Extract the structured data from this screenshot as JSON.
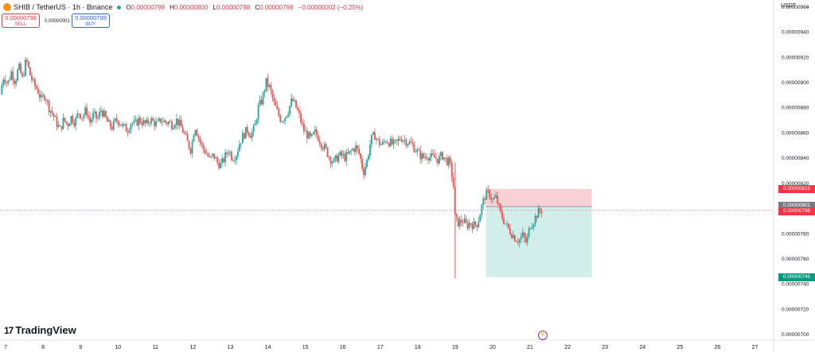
{
  "header": {
    "title": "SHIB / TetherUS · 1h · Binance",
    "open_label": "O",
    "open": "0.00000799",
    "high_label": "H",
    "high": "0.00000800",
    "low_label": "L",
    "low": "0.00000798",
    "close_label": "C",
    "close": "0.00000798",
    "change": "−0.00000002 (−0.25%)"
  },
  "trade": {
    "sell_price": "0.00000798",
    "sell_label": "SELL",
    "buy_price": "0.00000799",
    "buy_label": "BUY",
    "spread": "0.00000001"
  },
  "currency": "USDT",
  "currency_caret": "⌄",
  "brand": "TradingView",
  "brand_mark": "17",
  "flash_icon": "⚡",
  "price_tags": {
    "target": "0.00000815",
    "mid": "0.00000801",
    "last": "0.00000798",
    "stop": "0.00000745"
  },
  "colors": {
    "up": "#26a69a",
    "down": "#ef5350",
    "target_zone": "#f7c9cc",
    "stop_zone": "#c9ebe6",
    "target_tag": "#f23645",
    "stop_tag": "#089981",
    "mid_tag": "#787b86"
  },
  "chart_data": {
    "type": "candlestick",
    "x_ticks": [
      "7",
      "8",
      "9",
      "10",
      "11",
      "12",
      "13",
      "14",
      "15",
      "16",
      "17",
      "18",
      "19",
      "20",
      "21",
      "22",
      "23",
      "24",
      "25",
      "26",
      "27"
    ],
    "y_ticks": [
      "0.00000960",
      "0.00000940",
      "0.00000920",
      "0.00000900",
      "0.00000880",
      "0.00000860",
      "0.00000840",
      "0.00000820",
      "0.00000780",
      "0.00000760",
      "0.00000740",
      "0.00000720",
      "0.00000700"
    ],
    "ylim": [
      6.95e-06,
      9.65e-06
    ],
    "xlim": [
      6.85,
      27.5
    ],
    "close_path": [
      [
        6.85,
        8.9e-06
      ],
      [
        6.95,
        9.05e-06
      ],
      [
        7.05,
        8.98e-06
      ],
      [
        7.15,
        9.08e-06
      ],
      [
        7.25,
        9e-06
      ],
      [
        7.35,
        9.12e-06
      ],
      [
        7.45,
        9.02e-06
      ],
      [
        7.55,
        9.18e-06
      ],
      [
        7.65,
        9.06e-06
      ],
      [
        7.75,
        8.98e-06
      ],
      [
        7.85,
        8.94e-06
      ],
      [
        7.95,
        8.86e-06
      ],
      [
        8.05,
        8.9e-06
      ],
      [
        8.15,
        8.8e-06
      ],
      [
        8.25,
        8.75e-06
      ],
      [
        8.35,
        8.68e-06
      ],
      [
        8.45,
        8.62e-06
      ],
      [
        8.55,
        8.7e-06
      ],
      [
        8.65,
        8.66e-06
      ],
      [
        8.75,
        8.72e-06
      ],
      [
        8.85,
        8.68e-06
      ],
      [
        8.95,
        8.76e-06
      ],
      [
        9.05,
        8.72e-06
      ],
      [
        9.15,
        8.78e-06
      ],
      [
        9.25,
        8.68e-06
      ],
      [
        9.35,
        8.74e-06
      ],
      [
        9.45,
        8.7e-06
      ],
      [
        9.55,
        8.78e-06
      ],
      [
        9.65,
        8.72e-06
      ],
      [
        9.75,
        8.66e-06
      ],
      [
        9.85,
        8.64e-06
      ],
      [
        9.95,
        8.7e-06
      ],
      [
        10.05,
        8.68e-06
      ],
      [
        10.15,
        8.64e-06
      ],
      [
        10.25,
        8.62e-06
      ],
      [
        10.35,
        8.68e-06
      ],
      [
        10.45,
        8.66e-06
      ],
      [
        10.55,
        8.7e-06
      ],
      [
        10.65,
        8.68e-06
      ],
      [
        10.75,
        8.66e-06
      ],
      [
        10.85,
        8.7e-06
      ],
      [
        10.95,
        8.68e-06
      ],
      [
        11.05,
        8.66e-06
      ],
      [
        11.15,
        8.7e-06
      ],
      [
        11.25,
        8.68e-06
      ],
      [
        11.35,
        8.68e-06
      ],
      [
        11.45,
        8.66e-06
      ],
      [
        11.55,
        8.7e-06
      ],
      [
        11.65,
        8.66e-06
      ],
      [
        11.75,
        8.6e-06
      ],
      [
        11.85,
        8.52e-06
      ],
      [
        11.95,
        8.46e-06
      ],
      [
        12.05,
        8.66e-06
      ],
      [
        12.15,
        8.56e-06
      ],
      [
        12.25,
        8.48e-06
      ],
      [
        12.35,
        8.44e-06
      ],
      [
        12.45,
        8.38e-06
      ],
      [
        12.55,
        8.42e-06
      ],
      [
        12.65,
        8.36e-06
      ],
      [
        12.75,
        8.34e-06
      ],
      [
        12.85,
        8.4e-06
      ],
      [
        12.95,
        8.46e-06
      ],
      [
        13.05,
        8.4e-06
      ],
      [
        13.15,
        8.42e-06
      ],
      [
        13.25,
        8.52e-06
      ],
      [
        13.35,
        8.58e-06
      ],
      [
        13.45,
        8.62e-06
      ],
      [
        13.55,
        8.58e-06
      ],
      [
        13.65,
        8.64e-06
      ],
      [
        13.75,
        8.8e-06
      ],
      [
        13.85,
        8.86e-06
      ],
      [
        13.95,
        9e-06
      ],
      [
        14.05,
        8.95e-06
      ],
      [
        14.15,
        8.84e-06
      ],
      [
        14.25,
        8.76e-06
      ],
      [
        14.35,
        8.7e-06
      ],
      [
        14.45,
        8.72e-06
      ],
      [
        14.55,
        8.78e-06
      ],
      [
        14.65,
        8.86e-06
      ],
      [
        14.75,
        8.8e-06
      ],
      [
        14.85,
        8.72e-06
      ],
      [
        14.95,
        8.62e-06
      ],
      [
        15.05,
        8.58e-06
      ],
      [
        15.15,
        8.54e-06
      ],
      [
        15.25,
        8.6e-06
      ],
      [
        15.35,
        8.56e-06
      ],
      [
        15.45,
        8.5e-06
      ],
      [
        15.55,
        8.46e-06
      ],
      [
        15.65,
        8.4e-06
      ],
      [
        15.75,
        8.36e-06
      ],
      [
        15.85,
        8.4e-06
      ],
      [
        15.95,
        8.42e-06
      ],
      [
        16.05,
        8.4e-06
      ],
      [
        16.15,
        8.42e-06
      ],
      [
        16.25,
        8.46e-06
      ],
      [
        16.35,
        8.48e-06
      ],
      [
        16.45,
        8.42e-06
      ],
      [
        16.55,
        8.28e-06
      ],
      [
        16.65,
        8.38e-06
      ],
      [
        16.75,
        8.54e-06
      ],
      [
        16.85,
        8.58e-06
      ],
      [
        16.95,
        8.52e-06
      ],
      [
        17.05,
        8.5e-06
      ],
      [
        17.15,
        8.54e-06
      ],
      [
        17.25,
        8.52e-06
      ],
      [
        17.35,
        8.5e-06
      ],
      [
        17.45,
        8.52e-06
      ],
      [
        17.55,
        8.56e-06
      ],
      [
        17.65,
        8.54e-06
      ],
      [
        17.75,
        8.52e-06
      ],
      [
        17.85,
        8.5e-06
      ],
      [
        17.95,
        8.46e-06
      ],
      [
        18.05,
        8.42e-06
      ],
      [
        18.15,
        8.4e-06
      ],
      [
        18.25,
        8.42e-06
      ],
      [
        18.35,
        8.4e-06
      ],
      [
        18.45,
        8.4e-06
      ],
      [
        18.55,
        8.38e-06
      ],
      [
        18.65,
        8.42e-06
      ],
      [
        18.75,
        8.38e-06
      ],
      [
        18.85,
        8.36e-06
      ],
      [
        18.95,
        8.2e-06
      ],
      [
        19.0,
        7.9e-06
      ],
      [
        19.1,
        7.88e-06
      ],
      [
        19.2,
        7.9e-06
      ],
      [
        19.3,
        7.86e-06
      ],
      [
        19.4,
        7.88e-06
      ],
      [
        19.5,
        7.86e-06
      ],
      [
        19.6,
        7.88e-06
      ],
      [
        19.7,
        8e-06
      ],
      [
        19.8,
        8.1e-06
      ],
      [
        19.9,
        8.12e-06
      ],
      [
        20.0,
        8.06e-06
      ],
      [
        20.1,
        8.08e-06
      ],
      [
        20.2,
        7.96e-06
      ],
      [
        20.3,
        7.9e-06
      ],
      [
        20.4,
        7.84e-06
      ],
      [
        20.5,
        7.8e-06
      ],
      [
        20.6,
        7.76e-06
      ],
      [
        20.7,
        7.74e-06
      ],
      [
        20.8,
        7.78e-06
      ],
      [
        20.9,
        7.72e-06
      ],
      [
        21.0,
        7.86e-06
      ],
      [
        21.1,
        7.9e-06
      ],
      [
        21.2,
        7.96e-06
      ],
      [
        21.3,
        7.98e-06
      ]
    ],
    "position": {
      "x_start": 19.82,
      "x_end": 22.65,
      "target": 8.15e-06,
      "entry": 8.01e-06,
      "stop": 7.45e-06
    },
    "last_price": 7.98e-06
  }
}
